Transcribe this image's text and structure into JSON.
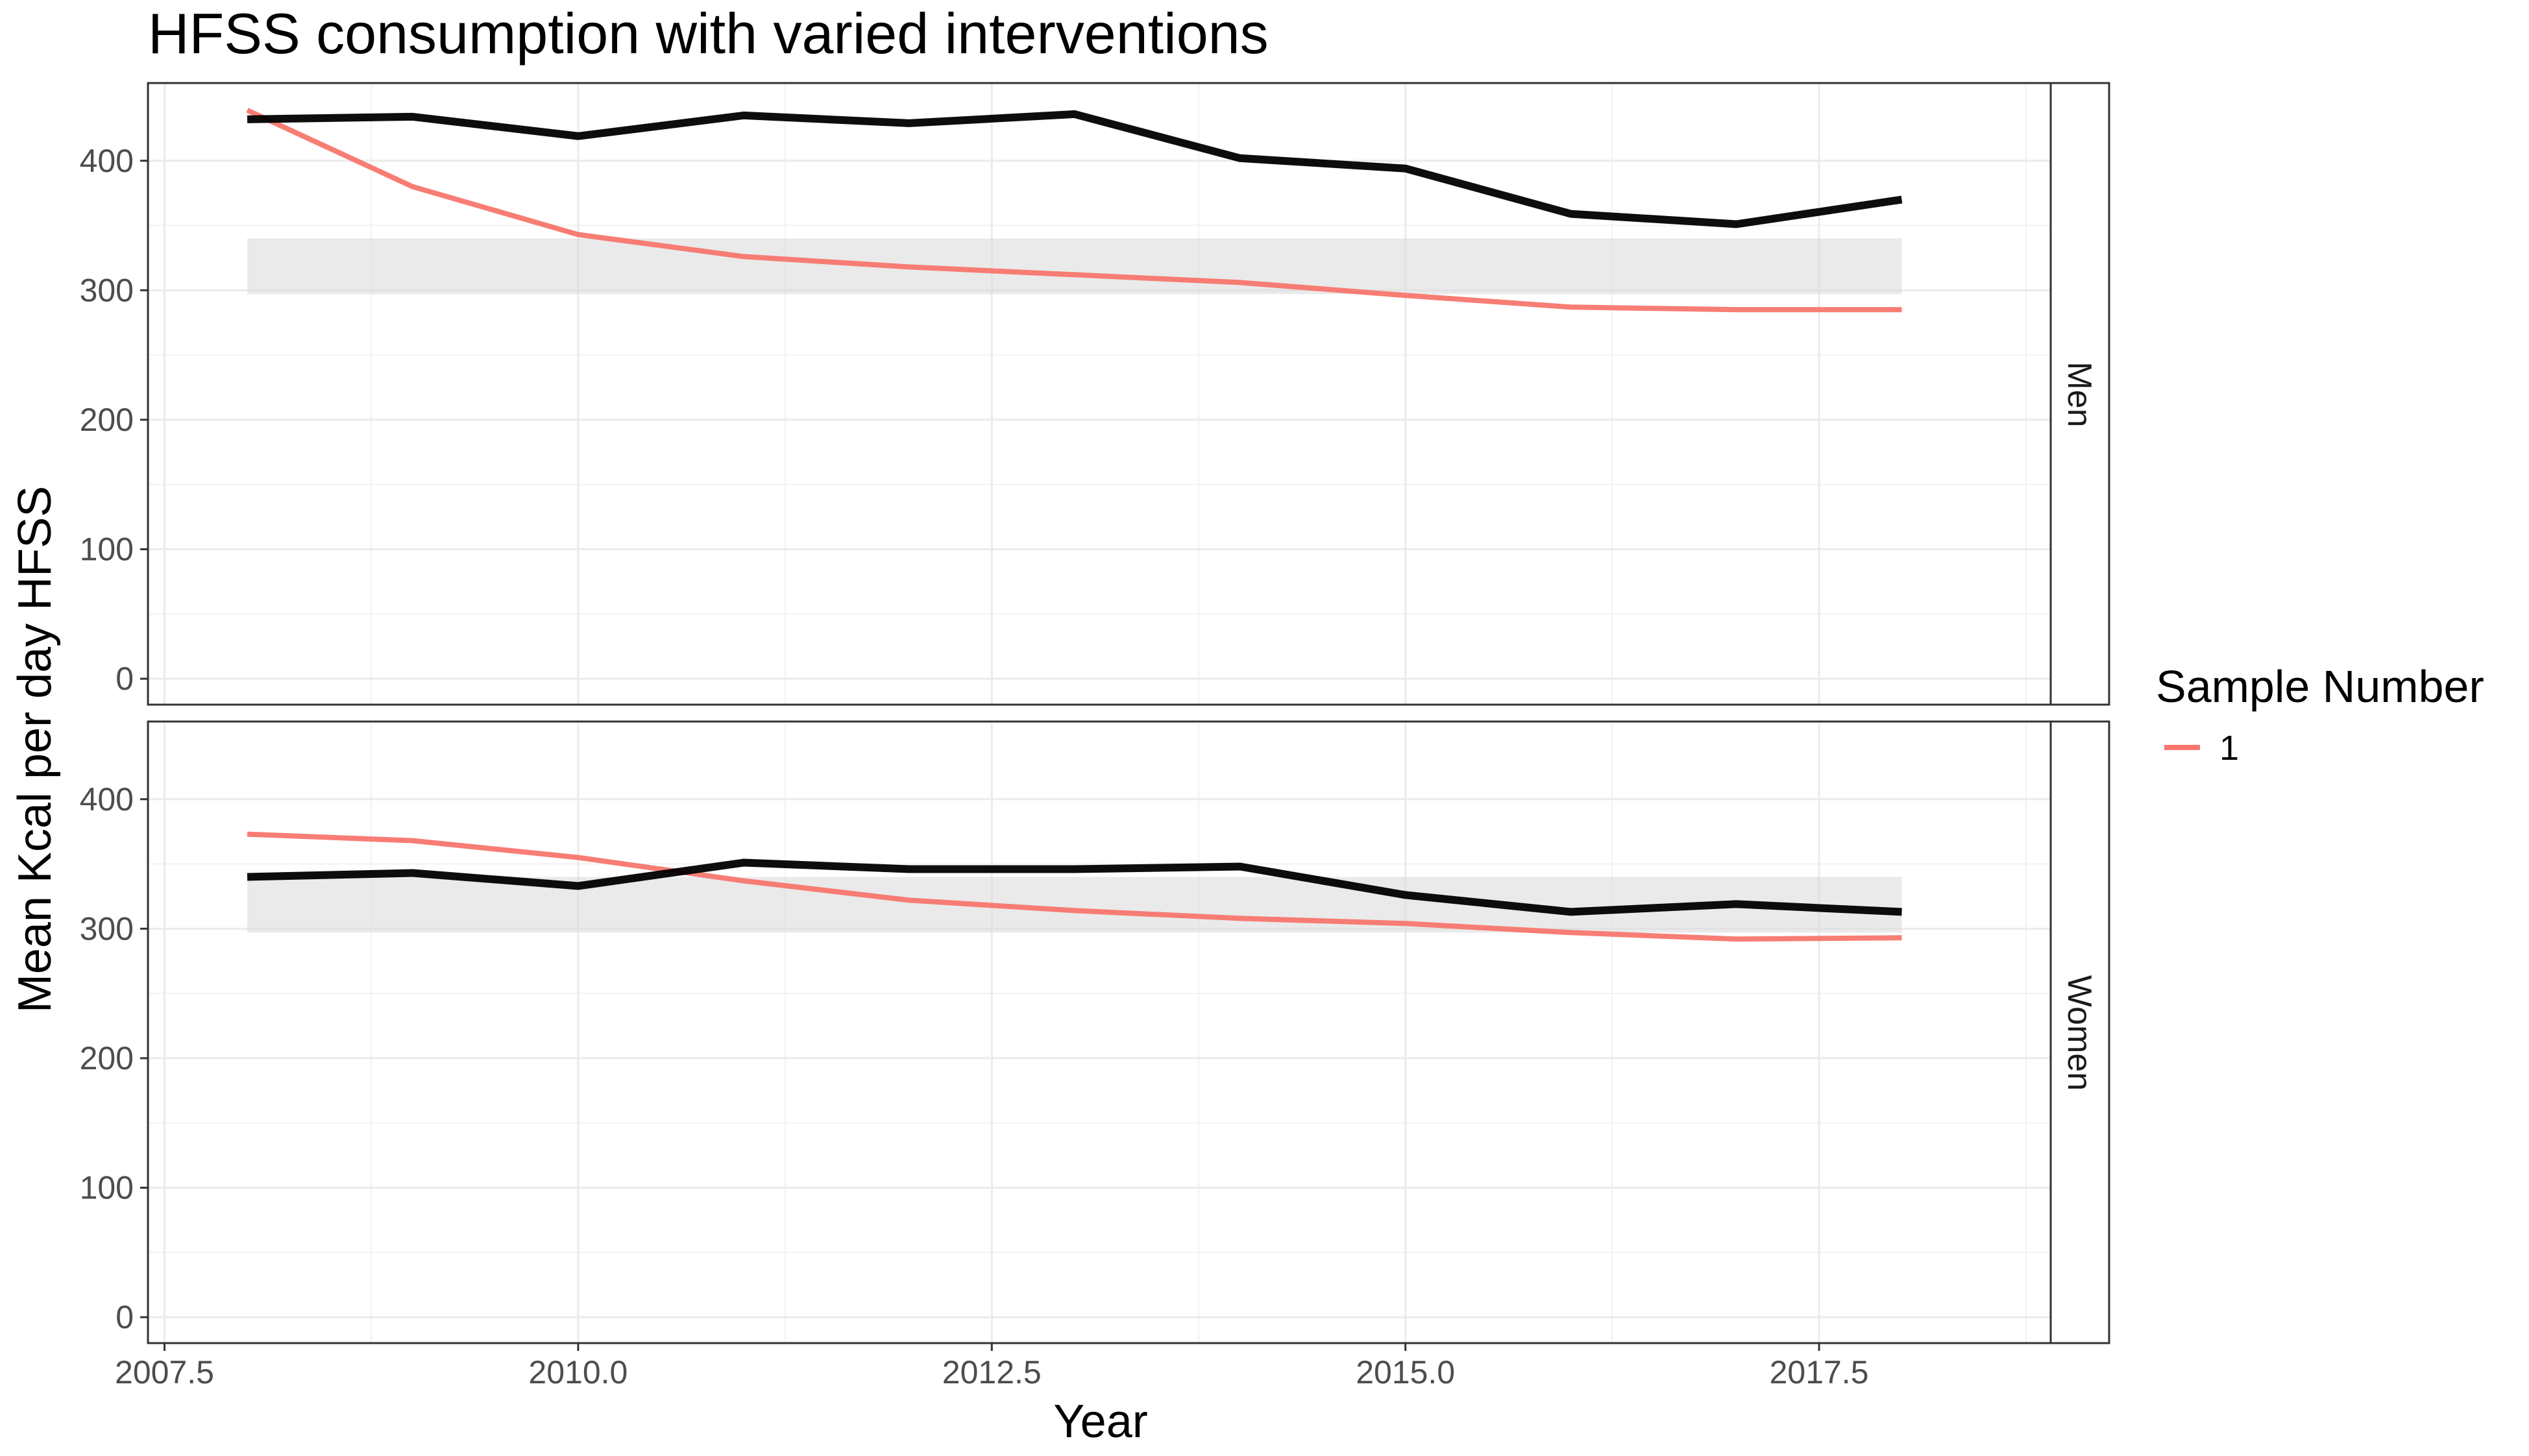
{
  "chart_data": {
    "type": "line",
    "title": "HFSS consumption with varied interventions",
    "xlabel": "Year",
    "ylabel": "Mean Kcal per day HFSS",
    "xlim": [
      2007.4,
      2018.9
    ],
    "ylim": [
      -20,
      460
    ],
    "x_ticks": [
      2007.5,
      2010.0,
      2012.5,
      2015.0,
      2017.5
    ],
    "x_tick_labels": [
      "2007.5",
      "2010.0",
      "2012.5",
      "2015.0",
      "2017.5"
    ],
    "y_ticks": [
      0,
      100,
      200,
      300,
      400
    ],
    "y_tick_labels": [
      "0",
      "100",
      "200",
      "300",
      "400"
    ],
    "grid": true,
    "legend": {
      "title": "Sample Number",
      "placement": "right",
      "entries": [
        {
          "label": "1",
          "color": "#F8766D"
        }
      ]
    },
    "panels": [
      {
        "strip": "Men",
        "band": {
          "x": [
            2008,
            2018
          ],
          "ymin": 297,
          "ymax": 340
        },
        "series": [
          {
            "legend_label": "1",
            "color": "#F8766D",
            "x": [
              2008,
              2009,
              2010,
              2011,
              2012,
              2013,
              2014,
              2015,
              2016,
              2017,
              2018
            ],
            "y": [
              439,
              380,
              343,
              326,
              318,
              312,
              306,
              296,
              287,
              285,
              285
            ]
          },
          {
            "legend_label": "",
            "color": "#000000",
            "x": [
              2008,
              2009,
              2010,
              2011,
              2012,
              2013,
              2014,
              2015,
              2016,
              2017,
              2018
            ],
            "y": [
              432,
              434,
              419,
              435,
              429,
              436,
              402,
              394,
              359,
              351,
              370
            ]
          }
        ]
      },
      {
        "strip": "Women",
        "band": {
          "x": [
            2008,
            2018
          ],
          "ymin": 297,
          "ymax": 340
        },
        "series": [
          {
            "legend_label": "1",
            "color": "#F8766D",
            "x": [
              2008,
              2009,
              2010,
              2011,
              2012,
              2013,
              2014,
              2015,
              2016,
              2017,
              2018
            ],
            "y": [
              373,
              368,
              355,
              337,
              322,
              314,
              308,
              304,
              297,
              292,
              293
            ]
          },
          {
            "legend_label": "",
            "color": "#000000",
            "x": [
              2008,
              2009,
              2010,
              2011,
              2012,
              2013,
              2014,
              2015,
              2016,
              2017,
              2018
            ],
            "y": [
              340,
              343,
              333,
              351,
              346,
              346,
              348,
              326,
              313,
              319,
              313
            ]
          }
        ]
      }
    ]
  }
}
